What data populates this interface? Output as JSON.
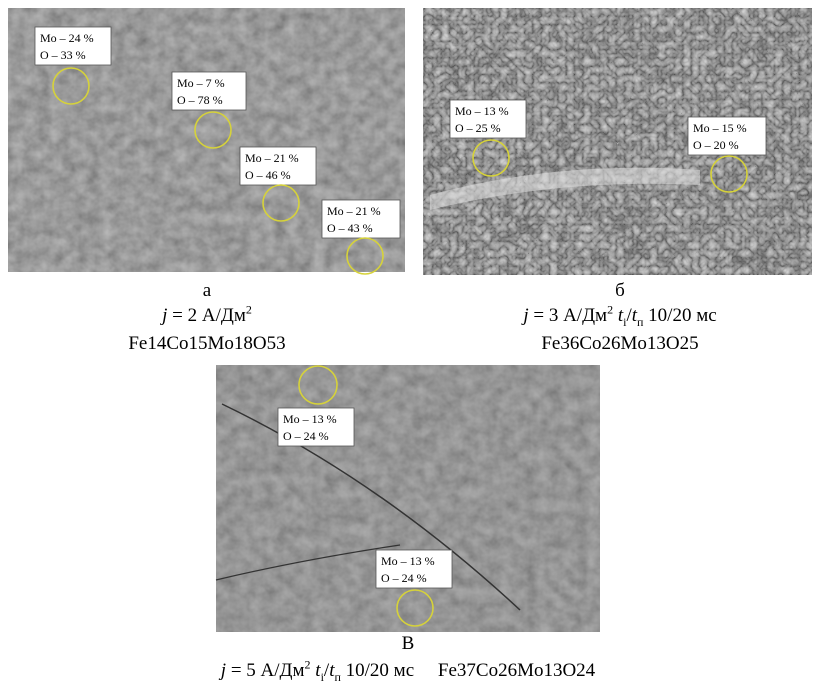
{
  "panels": [
    {
      "letter": "а",
      "annotations": [
        [
          "Mo – 24 %",
          "O – 33 %"
        ],
        [
          "Mo – 7 %",
          "O – 78 %"
        ],
        [
          "Mo – 21 %",
          "O – 46 %"
        ],
        [
          "Mo – 21 %",
          "O – 43 %"
        ]
      ],
      "condition": [
        "j",
        "= 2 А/Дм",
        "2"
      ],
      "composition": "Fe14Co15Mo18O53"
    },
    {
      "letter": "б",
      "annotations": [
        [
          "Mo – 13 %",
          "O – 25 %"
        ],
        [
          "Mo – 15 %",
          "O – 20 %"
        ]
      ],
      "condition": [
        "j",
        "= 3 А/Дм",
        "2",
        "t",
        "i",
        "/",
        "t",
        "п",
        "10/20 мс"
      ],
      "composition": "Fe36Co26Mo13O25"
    },
    {
      "letter": "В",
      "annotations": [
        [
          "Mo – 13 %",
          "O – 24 %"
        ],
        [
          "Mo – 13 %",
          "O – 24 %"
        ]
      ],
      "condition": [
        "j",
        "= 5 А/Дм",
        "2",
        "t",
        "i",
        "/",
        "t",
        "п",
        "10/20 мс"
      ],
      "composition": "Fe37Co26Mo13O24"
    }
  ]
}
